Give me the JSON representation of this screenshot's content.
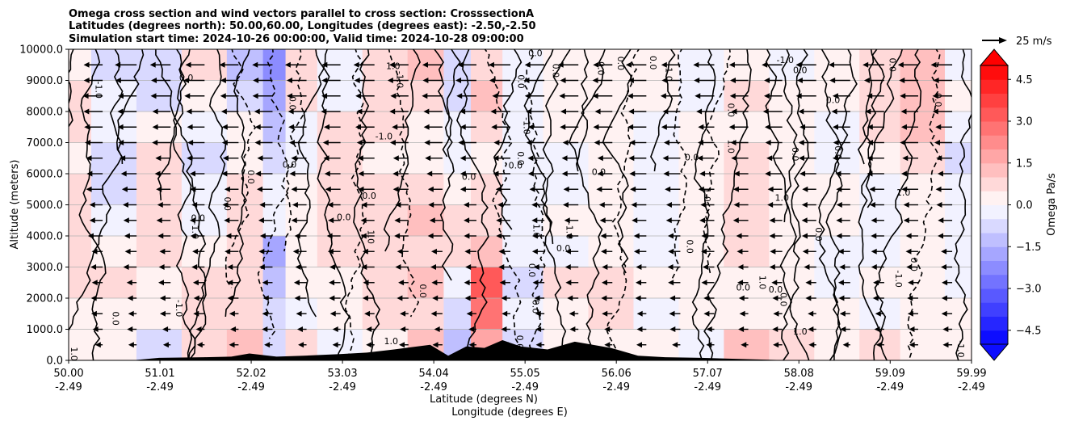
{
  "chart_data": {
    "type": "heatmap",
    "title_lines": [
      "Omega cross section and wind vectors parallel to cross section: CrosssectionA",
      "Latitudes (degrees north): 50.00,60.00, Longitudes (degrees east): -2.50,-2.50",
      "Simulation start time: 2024-10-26 00:00:00, Valid time: 2024-10-28 09:00:00"
    ],
    "ylabel": "Altitude (meters)",
    "xlabel_lines": [
      "Latitude (degrees N)",
      "Longitude (degrees E)"
    ],
    "ylim": [
      0,
      10000
    ],
    "y_ticks": [
      "0.0",
      "1000.0",
      "2000.0",
      "3000.0",
      "4000.0",
      "5000.0",
      "6000.0",
      "7000.0",
      "8000.0",
      "9000.0",
      "10000.0"
    ],
    "x_ticks": [
      {
        "lat": "50.00",
        "lon": "-2.49"
      },
      {
        "lat": "51.01",
        "lon": "-2.49"
      },
      {
        "lat": "52.02",
        "lon": "-2.49"
      },
      {
        "lat": "53.03",
        "lon": "-2.49"
      },
      {
        "lat": "54.04",
        "lon": "-2.49"
      },
      {
        "lat": "55.05",
        "lon": "-2.49"
      },
      {
        "lat": "56.06",
        "lon": "-2.49"
      },
      {
        "lat": "57.07",
        "lon": "-2.49"
      },
      {
        "lat": "58.08",
        "lon": "-2.49"
      },
      {
        "lat": "59.09",
        "lon": "-2.49"
      },
      {
        "lat": "59.99",
        "lon": "-2.49"
      }
    ],
    "xlim_lat": [
      50.0,
      59.99
    ],
    "colorbar": {
      "label": "Omega Pa/s",
      "range": [
        -5.0,
        5.0
      ],
      "ticks": [
        "4.5",
        "3.0",
        "1.5",
        "0.0",
        "−1.5",
        "−3.0",
        "−4.5"
      ],
      "tick_values": [
        4.5,
        3.0,
        1.5,
        0.0,
        -1.5,
        -3.0,
        -4.5
      ],
      "cmap": "bwr",
      "extend": "both"
    },
    "quiver_key": {
      "label": "25 m/s",
      "speed": 25
    },
    "grid": true,
    "field_columns_lat": [
      50.0,
      50.5,
      51.0,
      51.5,
      52.0,
      52.3,
      52.5,
      53.0,
      53.5,
      54.0,
      54.3,
      54.6,
      55.0,
      55.5,
      56.0,
      56.5,
      57.0,
      57.5,
      58.0,
      58.5,
      59.0,
      59.4,
      59.99
    ],
    "field_rows_alt": [
      9500,
      8500,
      7500,
      6500,
      5500,
      4500,
      3500,
      2500,
      1500,
      500
    ],
    "omega_field": [
      [
        0.3,
        -0.6,
        -0.9,
        0.5,
        -1.2,
        -2.2,
        0.6,
        -0.5,
        0.8,
        1.3,
        -0.8,
        0.7,
        -0.4,
        0.2,
        0.4,
        0.3,
        -0.3,
        0.4,
        -0.2,
        0.3,
        0.8,
        1.2,
        -0.2
      ],
      [
        0.9,
        -0.3,
        -0.6,
        0.4,
        -1.0,
        -1.6,
        0.5,
        -0.4,
        0.9,
        0.6,
        -0.6,
        1.2,
        -0.3,
        0.3,
        0.4,
        0.2,
        -0.2,
        0.5,
        0.3,
        0.2,
        0.9,
        1.4,
        0.3
      ],
      [
        0.6,
        -0.4,
        0.4,
        -0.3,
        0.3,
        -1.2,
        -0.3,
        0.5,
        0.6,
        0.3,
        -0.3,
        0.5,
        -0.2,
        0.2,
        0.3,
        -0.3,
        0.2,
        0.4,
        0.3,
        -0.2,
        0.6,
        1.2,
        -0.4
      ],
      [
        0.3,
        -0.7,
        0.5,
        -0.6,
        0.4,
        -0.6,
        -0.2,
        0.6,
        0.4,
        0.4,
        -0.2,
        0.2,
        -0.3,
        -0.2,
        0.3,
        -0.4,
        0.2,
        0.5,
        0.3,
        -0.3,
        0.4,
        0.6,
        -0.6
      ],
      [
        0.5,
        -0.6,
        0.5,
        -0.5,
        0.6,
        -0.4,
        0.3,
        0.7,
        0.5,
        0.8,
        0.4,
        0.5,
        -0.4,
        -0.3,
        0.2,
        -0.3,
        0.3,
        0.5,
        0.2,
        0.3,
        -0.3,
        0.4,
        -0.5
      ],
      [
        0.6,
        -0.2,
        0.6,
        -0.3,
        0.5,
        -0.5,
        0.4,
        0.6,
        0.7,
        1.0,
        0.5,
        0.6,
        -0.3,
        0.3,
        0.3,
        -0.2,
        0.3,
        0.6,
        0.3,
        0.4,
        -0.3,
        0.3,
        -0.4
      ],
      [
        0.7,
        0.3,
        0.8,
        0.4,
        0.6,
        -1.8,
        0.3,
        0.5,
        0.6,
        0.9,
        0.5,
        1.0,
        -0.5,
        -0.3,
        0.4,
        -0.2,
        0.4,
        0.6,
        0.2,
        -0.3,
        -0.4,
        0.4,
        -0.3
      ],
      [
        0.5,
        0.6,
        0.4,
        0.6,
        0.6,
        -1.5,
        0.3,
        0.4,
        0.5,
        1.4,
        -0.3,
        3.2,
        -0.6,
        0.5,
        0.6,
        0.2,
        0.3,
        0.4,
        0.3,
        -0.3,
        0.3,
        0.3,
        -0.2
      ],
      [
        0.4,
        0.3,
        0.3,
        0.7,
        0.9,
        -0.6,
        -0.3,
        0.3,
        0.5,
        0.8,
        -0.6,
        2.5,
        -0.3,
        0.4,
        0.5,
        -0.3,
        0.2,
        0.3,
        0.2,
        0.3,
        -0.4,
        0.3,
        0.2
      ],
      [
        0.3,
        0.4,
        -0.8,
        0.8,
        1.0,
        -0.6,
        0.6,
        -0.4,
        0.3,
        1.0,
        -1.5,
        1.5,
        -1.0,
        0.4,
        0.3,
        0.2,
        -0.3,
        1.0,
        0.6,
        0.3,
        0.6,
        0.3,
        0.2
      ]
    ],
    "terrain": {
      "lat": [
        50.0,
        50.7,
        51.0,
        51.5,
        51.8,
        52.0,
        52.3,
        52.6,
        53.0,
        53.3,
        53.6,
        54.0,
        54.2,
        54.4,
        54.6,
        54.8,
        55.0,
        55.3,
        55.6,
        56.0,
        56.3,
        56.6,
        57.0,
        57.5,
        58.0,
        59.99
      ],
      "alt": [
        0,
        0,
        80,
        100,
        120,
        220,
        120,
        150,
        200,
        250,
        350,
        500,
        150,
        450,
        400,
        650,
        450,
        350,
        600,
        400,
        150,
        100,
        80,
        40,
        0,
        0
      ]
    },
    "contour_label_value_zero": "0.0",
    "contour_label_value_pos": "1.0",
    "contour_label_value_neg": "-1.0"
  }
}
